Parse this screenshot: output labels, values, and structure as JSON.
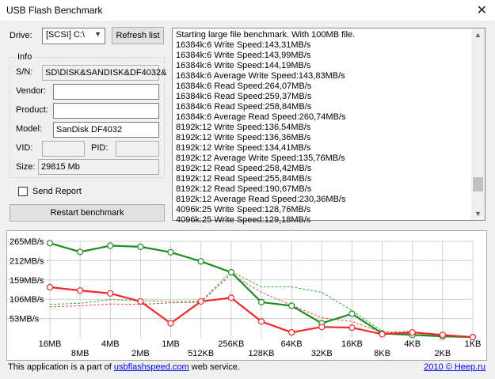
{
  "window": {
    "title": "USB Flash Benchmark",
    "close": "✕"
  },
  "drive": {
    "label": "Drive:",
    "value": "[SCSI] C:\\",
    "refresh": "Refresh list"
  },
  "info": {
    "title": "Info",
    "sn_label": "S/N:",
    "sn_value": "SD\\DISK&SANDISK&DF4032&",
    "vendor_label": "Vendor:",
    "vendor_value": "",
    "product_label": "Product:",
    "product_value": "",
    "model_label": "Model:",
    "model_value": "SanDisk DF4032",
    "vid_label": "VID:",
    "vid_value": "",
    "pid_label": "PID:",
    "pid_value": "",
    "size_label": "Size:",
    "size_value": "29815 Mb"
  },
  "send_report": "Send Report",
  "restart": "Restart benchmark",
  "log": [
    "Starting large file benchmark. With 100MB file.",
    "16384k:6 Write Speed:143,31MB/s",
    "16384k:6 Write Speed:143,99MB/s",
    "16384k:6 Write Speed:144,19MB/s",
    "16384k:6 Average Write Speed:143,83MB/s",
    "16384k:6 Read Speed:264,07MB/s",
    "16384k:6 Read Speed:259,37MB/s",
    "16384k:6 Read Speed:258,84MB/s",
    "16384k:6 Average Read Speed:260,74MB/s",
    "8192k:12 Write Speed:136,54MB/s",
    "8192k:12 Write Speed:136,36MB/s",
    "8192k:12 Write Speed:134,41MB/s",
    "8192k:12 Average Write Speed:135,76MB/s",
    "8192k:12 Read Speed:258,42MB/s",
    "8192k:12 Read Speed:255,84MB/s",
    "8192k:12 Read Speed:190,67MB/s",
    "8192k:12 Average Read Speed:230,36MB/s",
    "4096k:25 Write Speed:128,76MB/s",
    "4096k:25 Write Speed:129,18MB/s"
  ],
  "colors": {
    "read": "#218c21",
    "write": "#ee2a2a",
    "read_ref": "#3aa83a",
    "write_ref": "#e85050",
    "chart_border": "#d0d0d0"
  },
  "chart_data": {
    "type": "line",
    "x_top": [
      "16MB",
      "4MB",
      "1MB",
      "256KB",
      "64KB",
      "16KB",
      "4KB",
      "1KB"
    ],
    "x_bottom": [
      "8MB",
      "2MB",
      "512KB",
      "128KB",
      "32KB",
      "8KB",
      "2KB"
    ],
    "x": [
      "16MB",
      "8MB",
      "4MB",
      "2MB",
      "1MB",
      "512KB",
      "256KB",
      "128KB",
      "64KB",
      "32KB",
      "16KB",
      "8KB",
      "4KB",
      "2KB",
      "1KB"
    ],
    "y_ticks": [
      "265MB/s",
      "212MB/s",
      "159MB/s",
      "106MB/s",
      "53MB/s"
    ],
    "ylim": [
      0,
      265
    ],
    "series": [
      {
        "values": [
          260,
          236,
          253,
          250,
          235,
          210,
          180,
          98,
          88,
          40,
          66,
          12,
          8,
          4,
          2
        ]
      },
      {
        "values": [
          139,
          130,
          122,
          100,
          40,
          100,
          110,
          45,
          15,
          30,
          28,
          10,
          15,
          8,
          2
        ]
      },
      {
        "values": [
          92,
          95,
          105,
          102,
          100,
          100,
          182,
          140,
          140,
          125,
          75,
          18,
          10,
          5,
          2
        ]
      },
      {
        "values": [
          85,
          88,
          93,
          92,
          96,
          98,
          175,
          125,
          90,
          55,
          45,
          15,
          18,
          5,
          2
        ]
      }
    ]
  },
  "footer": {
    "prefix": "This application is a part of ",
    "link": "usbflashspeed.com",
    "suffix": " web service.",
    "right": "2010 © Heep.ru"
  }
}
